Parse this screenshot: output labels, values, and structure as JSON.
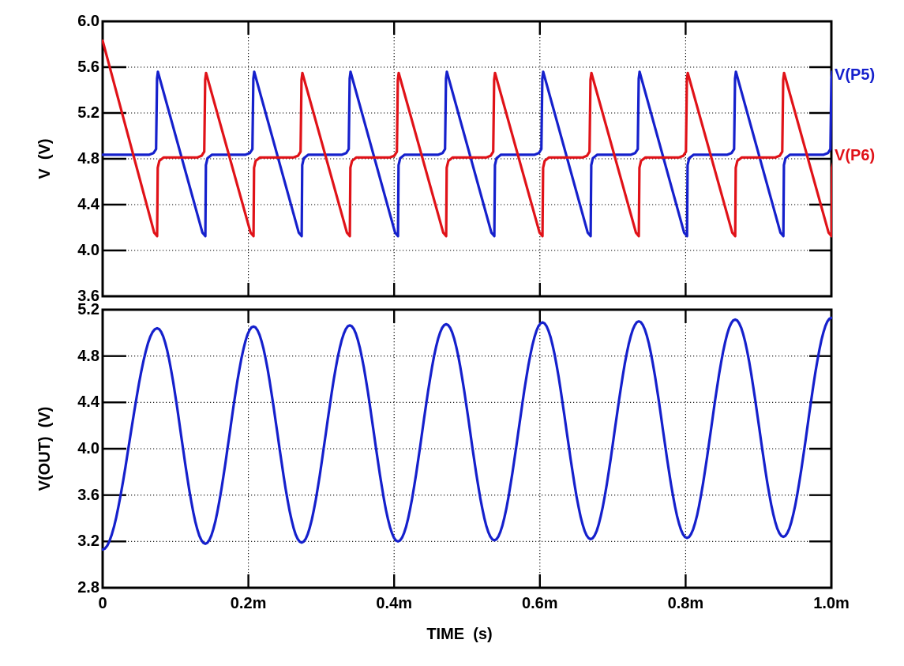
{
  "figure": {
    "background": "#FFFFFF",
    "num_panels": 2,
    "shared_x_axis": true,
    "text_color": "#000000",
    "grid_color": "#000000"
  },
  "chart_data": [
    {
      "type": "line",
      "panel": "top",
      "title": "",
      "xlabel": "TIME  (s)",
      "ylabel": "V  (V)",
      "ylim": [
        3.6,
        6.0
      ],
      "yticks": [
        "6.0",
        "5.6",
        "5.2",
        "4.8",
        "4.4",
        "4.0",
        "3.6"
      ],
      "xlim_ms": [
        0,
        1.0
      ],
      "xticks": [
        {
          "t_ms": 0.0,
          "label": "0"
        },
        {
          "t_ms": 0.2,
          "label": "0.2m"
        },
        {
          "t_ms": 0.4,
          "label": "0.4m"
        },
        {
          "t_ms": 0.6,
          "label": "0.6m"
        },
        {
          "t_ms": 0.8,
          "label": "0.8m"
        },
        {
          "t_ms": 1.0,
          "label": "1.0m"
        }
      ],
      "grid": "dotted",
      "legend_position": "labels-at-right-edge",
      "series": [
        {
          "name": "V(P5)",
          "color": "#1520CC",
          "waveform": "relaxation-sawtooth",
          "baseline_v": 4.835,
          "peak_v": 5.56,
          "min_v": 4.125,
          "initial_v": 4.835,
          "first_transition_ms": 0.0748,
          "half_period_ms": 0.0661,
          "period_ms": 0.1322,
          "ramps_on": "even"
        },
        {
          "name": "V(P6)",
          "color": "#E01218",
          "waveform": "relaxation-sawtooth",
          "baseline_v": 4.812,
          "peak_v": 5.55,
          "min_v": 4.125,
          "initial_v": 5.83,
          "first_transition_ms": 0.0748,
          "half_period_ms": 0.0661,
          "period_ms": 0.1322,
          "ramps_on": "odd"
        }
      ]
    },
    {
      "type": "line",
      "panel": "bottom",
      "title": "",
      "xlabel": "TIME  (s)",
      "ylabel": "V(OUT)  (V)",
      "ylim": [
        2.8,
        5.2
      ],
      "yticks": [
        "5.2",
        "4.8",
        "4.4",
        "4.0",
        "3.6",
        "3.2",
        "2.8"
      ],
      "grid": "dotted",
      "series": [
        {
          "name": "V(OUT)",
          "color": "#1520CC",
          "waveform": "sine-extrema",
          "period_ms": 0.1322,
          "extrema": [
            [
              0.0,
              3.13
            ],
            [
              0.0748,
              5.04
            ],
            [
              0.1409,
              3.18
            ],
            [
              0.207,
              5.055
            ],
            [
              0.2731,
              3.19
            ],
            [
              0.3392,
              5.065
            ],
            [
              0.4053,
              3.2
            ],
            [
              0.4714,
              5.075
            ],
            [
              0.5375,
              3.21
            ],
            [
              0.6036,
              5.09
            ],
            [
              0.6697,
              3.22
            ],
            [
              0.7358,
              5.1
            ],
            [
              0.8019,
              3.23
            ],
            [
              0.868,
              5.115
            ],
            [
              0.9341,
              3.24
            ],
            [
              1.0,
              5.13
            ]
          ]
        }
      ]
    }
  ]
}
